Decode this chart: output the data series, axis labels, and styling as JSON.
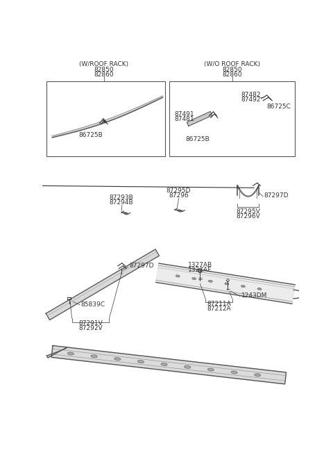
{
  "bg_color": "#ffffff",
  "lc": "#444444",
  "tc": "#333333",
  "fs": 6.5,
  "left_title": "(W/ROOF RACK)",
  "left_codes": [
    "82850",
    "82860"
  ],
  "right_title": "(W/O ROOF RACK)",
  "right_codes": [
    "82850",
    "82860"
  ],
  "label_86725B_L": "86725B",
  "label_87482": "87482",
  "label_87492": "87492",
  "label_86725C": "86725C",
  "label_87491": "87491",
  "label_87481": "87481",
  "label_86725B_R": "86725B",
  "label_87293B": "87293B",
  "label_87294B": "87294B",
  "label_87295D": "87295D",
  "label_87296": "87296",
  "label_87297D_M": "87297D",
  "label_87295V": "87295V",
  "label_87296V": "87296V",
  "label_85839C": "85839C",
  "label_87297D_B": "87297D",
  "label_87291V": "87291V",
  "label_87292V": "87292V",
  "label_1327AB": "1327AB",
  "label_1327AE": "1327AE",
  "label_1243DM": "1243DM",
  "label_87211A": "87211A",
  "label_87212A": "87212A"
}
